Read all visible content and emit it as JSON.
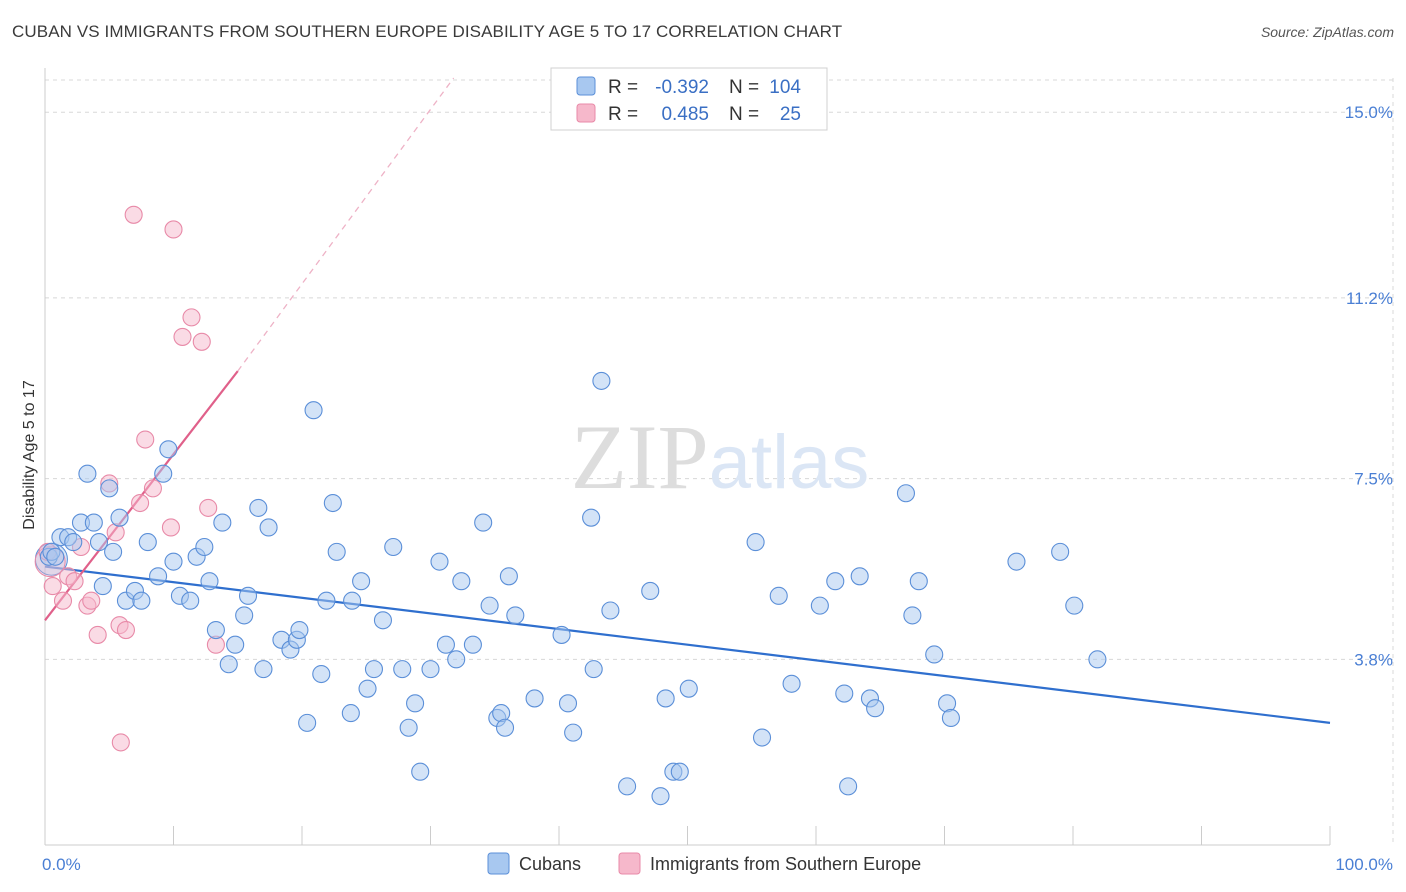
{
  "chart_data": {
    "type": "scatter",
    "title": "CUBAN VS IMMIGRANTS FROM SOUTHERN EUROPE DISABILITY AGE 5 TO 17 CORRELATION CHART",
    "source": "Source: ZipAtlas.com",
    "ylabel": "Disability Age 5 to 17",
    "xlabel": "",
    "xlim": [
      0,
      100
    ],
    "ylim": [
      0,
      15.7
    ],
    "x_tick_labels": [
      "0.0%",
      "100.0%"
    ],
    "y_ticks": [
      3.8,
      7.5,
      11.2,
      15.0
    ],
    "y_tick_labels": [
      "3.8%",
      "7.5%",
      "11.2%",
      "15.0%"
    ],
    "grid": true,
    "watermark": "ZIPatlas",
    "legend": {
      "position": "top-center",
      "rows": [
        {
          "r_label": "R =",
          "r_value": "-0.392",
          "n_label": "N =",
          "n_value": "104"
        },
        {
          "r_label": "R =",
          "r_value": "0.485",
          "n_label": "N =",
          "n_value": "25"
        }
      ]
    },
    "bottom_legend": [
      "Cubans",
      "Immigrants from Southern Europe"
    ],
    "colors": {
      "cubans_fill": "#a8c8f0",
      "cubans_stroke": "#5b8fd8",
      "cubans_line": "#2f6fce",
      "imm_fill": "#f6b8cb",
      "imm_stroke": "#e88aa8",
      "imm_line": "#e0608a",
      "grid": "#d8d8d8",
      "tick_text": "#4a7fd4"
    },
    "series": [
      {
        "name": "Cubans",
        "trend": {
          "x": [
            0,
            100
          ],
          "y": [
            5.7,
            2.5
          ]
        },
        "points": [
          [
            0.3,
            5.9
          ],
          [
            0.5,
            6.0
          ],
          [
            0.8,
            5.9
          ],
          [
            1.2,
            6.3
          ],
          [
            1.8,
            6.3
          ],
          [
            2.2,
            6.2
          ],
          [
            2.8,
            6.6
          ],
          [
            3.3,
            7.6
          ],
          [
            3.8,
            6.6
          ],
          [
            4.2,
            6.2
          ],
          [
            4.5,
            5.3
          ],
          [
            5.0,
            7.3
          ],
          [
            5.3,
            6.0
          ],
          [
            5.8,
            6.7
          ],
          [
            6.3,
            5.0
          ],
          [
            7.0,
            5.2
          ],
          [
            7.5,
            5.0
          ],
          [
            8.0,
            6.2
          ],
          [
            8.8,
            5.5
          ],
          [
            9.2,
            7.6
          ],
          [
            9.6,
            8.1
          ],
          [
            10.0,
            5.8
          ],
          [
            10.5,
            5.1
          ],
          [
            11.3,
            5.0
          ],
          [
            11.8,
            5.9
          ],
          [
            12.4,
            6.1
          ],
          [
            12.8,
            5.4
          ],
          [
            13.3,
            4.4
          ],
          [
            13.8,
            6.6
          ],
          [
            14.3,
            3.7
          ],
          [
            14.8,
            4.1
          ],
          [
            15.5,
            4.7
          ],
          [
            15.8,
            5.1
          ],
          [
            16.6,
            6.9
          ],
          [
            17.0,
            3.6
          ],
          [
            17.4,
            6.5
          ],
          [
            18.4,
            4.2
          ],
          [
            19.1,
            4.0
          ],
          [
            19.6,
            4.2
          ],
          [
            19.8,
            4.4
          ],
          [
            20.4,
            2.5
          ],
          [
            20.9,
            8.9
          ],
          [
            21.5,
            3.5
          ],
          [
            21.9,
            5.0
          ],
          [
            22.4,
            7.0
          ],
          [
            22.7,
            6.0
          ],
          [
            23.8,
            2.7
          ],
          [
            23.9,
            5.0
          ],
          [
            24.6,
            5.4
          ],
          [
            25.1,
            3.2
          ],
          [
            25.6,
            3.6
          ],
          [
            26.3,
            4.6
          ],
          [
            27.1,
            6.1
          ],
          [
            27.8,
            3.6
          ],
          [
            28.3,
            2.4
          ],
          [
            28.8,
            2.9
          ],
          [
            29.2,
            1.5
          ],
          [
            30.0,
            3.6
          ],
          [
            30.7,
            5.8
          ],
          [
            31.2,
            4.1
          ],
          [
            32.0,
            3.8
          ],
          [
            32.4,
            5.4
          ],
          [
            33.3,
            4.1
          ],
          [
            34.1,
            6.6
          ],
          [
            34.6,
            4.9
          ],
          [
            35.2,
            2.6
          ],
          [
            35.5,
            2.7
          ],
          [
            35.8,
            2.4
          ],
          [
            36.1,
            5.5
          ],
          [
            36.6,
            4.7
          ],
          [
            38.1,
            3.0
          ],
          [
            40.2,
            4.3
          ],
          [
            40.7,
            2.9
          ],
          [
            41.1,
            2.3
          ],
          [
            42.5,
            6.7
          ],
          [
            42.7,
            3.6
          ],
          [
            43.3,
            9.5
          ],
          [
            44.0,
            4.8
          ],
          [
            45.3,
            1.2
          ],
          [
            47.1,
            5.2
          ],
          [
            47.9,
            1.0
          ],
          [
            48.3,
            3.0
          ],
          [
            48.9,
            1.5
          ],
          [
            49.4,
            1.5
          ],
          [
            50.1,
            3.2
          ],
          [
            55.3,
            6.2
          ],
          [
            55.8,
            2.2
          ],
          [
            57.1,
            5.1
          ],
          [
            58.1,
            3.3
          ],
          [
            60.3,
            4.9
          ],
          [
            61.5,
            5.4
          ],
          [
            62.2,
            3.1
          ],
          [
            62.5,
            1.2
          ],
          [
            63.4,
            5.5
          ],
          [
            64.2,
            3.0
          ],
          [
            64.6,
            2.8
          ],
          [
            67.0,
            7.2
          ],
          [
            67.5,
            4.7
          ],
          [
            68.0,
            5.4
          ],
          [
            69.2,
            3.9
          ],
          [
            70.2,
            2.9
          ],
          [
            70.5,
            2.6
          ],
          [
            75.6,
            5.8
          ],
          [
            79.0,
            6.0
          ],
          [
            80.1,
            4.9
          ],
          [
            81.9,
            3.8
          ]
        ]
      },
      {
        "name": "Immigrants from Southern Europe",
        "trend": {
          "x": [
            0,
            15.0
          ],
          "y": [
            4.6,
            9.7
          ],
          "dashed_to": {
            "x": 31.8,
            "y": 15.7
          }
        },
        "points": [
          [
            0.2,
            6.0
          ],
          [
            0.6,
            5.3
          ],
          [
            1.4,
            5.0
          ],
          [
            1.8,
            5.5
          ],
          [
            2.3,
            5.4
          ],
          [
            2.8,
            6.1
          ],
          [
            3.3,
            4.9
          ],
          [
            3.6,
            5.0
          ],
          [
            4.1,
            4.3
          ],
          [
            5.0,
            7.4
          ],
          [
            5.5,
            6.4
          ],
          [
            5.8,
            4.5
          ],
          [
            6.3,
            4.4
          ],
          [
            6.9,
            12.9
          ],
          [
            7.4,
            7.0
          ],
          [
            7.8,
            8.3
          ],
          [
            8.4,
            7.3
          ],
          [
            9.8,
            6.5
          ],
          [
            10.0,
            12.6
          ],
          [
            10.7,
            10.4
          ],
          [
            11.4,
            10.8
          ],
          [
            12.2,
            10.3
          ],
          [
            12.7,
            6.9
          ],
          [
            13.3,
            4.1
          ],
          [
            5.9,
            2.1
          ]
        ]
      }
    ]
  }
}
